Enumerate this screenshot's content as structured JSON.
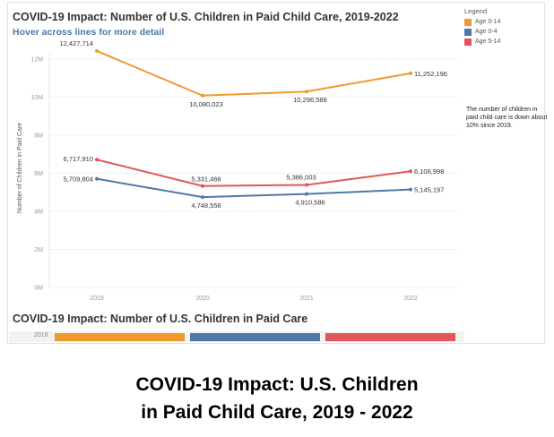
{
  "dashboard": {
    "title": "COVID-19 Impact: Number of U.S. Children in Paid Child Care, 2019-2022",
    "subtitle": "Hover across lines for more detail",
    "note": "The number of children in paid child care is down about 10% since 2019."
  },
  "legend": {
    "title": "Legend",
    "items": [
      {
        "label": "Age 0-14",
        "color": "#f09a2e"
      },
      {
        "label": "Age 0-4",
        "color": "#4e79a7"
      },
      {
        "label": "Age 5-14",
        "color": "#e15759"
      }
    ]
  },
  "chart_data": {
    "type": "line",
    "x": [
      "2019",
      "2020",
      "2021",
      "2022"
    ],
    "ylabel": "Number of Children in Paid Care",
    "ylim": [
      0,
      12000000
    ],
    "yticks": [
      "0M",
      "2M",
      "4M",
      "6M",
      "8M",
      "10M",
      "12M"
    ],
    "series": [
      {
        "name": "Age 0-14",
        "color": "#f09a2e",
        "values": [
          12427714,
          10080023,
          10296588,
          11252196
        ],
        "labels": [
          "12,427,714",
          "10,080,023",
          "10,296,588",
          "11,252,196"
        ]
      },
      {
        "name": "Age 5-14",
        "color": "#e15759",
        "values": [
          6717910,
          5331466,
          5386003,
          6106998
        ],
        "labels": [
          "6,717,910",
          "5,331,466",
          "5,386,003",
          "6,106,998"
        ]
      },
      {
        "name": "Age 0-4",
        "color": "#4e79a7",
        "values": [
          5709804,
          4748558,
          4910586,
          5145197
        ],
        "labels": [
          "5,709,804",
          "4,748,558",
          "4,910,586",
          "5,145,197"
        ]
      }
    ]
  },
  "section": {
    "title": "COVID-19 Impact: Number of U.S. Children in Paid Care",
    "year": "2019",
    "segments": [
      {
        "color": "#f09a2e"
      },
      {
        "color": "#4e79a7"
      },
      {
        "color": "#e15759"
      }
    ]
  },
  "caption": {
    "line1": "COVID-19 Impact: U.S. Children",
    "line2": "in Paid Child Care, 2019 - 2022"
  }
}
